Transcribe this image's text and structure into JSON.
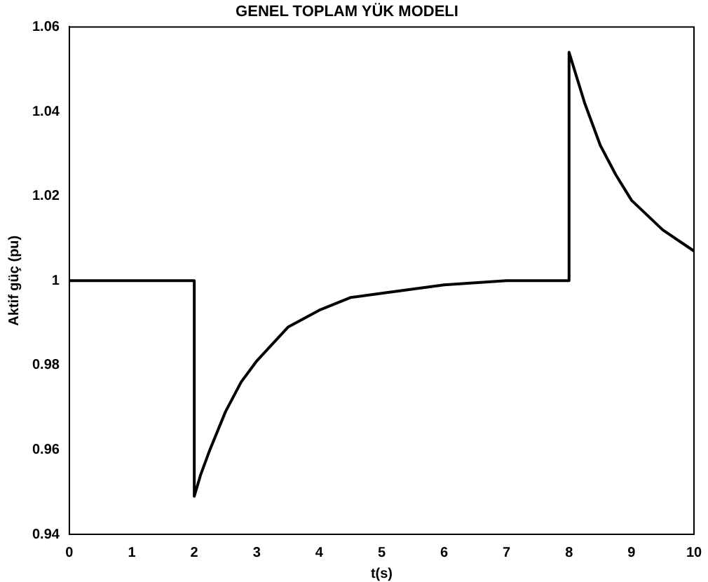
{
  "chart_data": {
    "type": "line",
    "title": "GENEL TOPLAM YÜK MODELI",
    "xlabel": "t(s)",
    "ylabel": "Aktif güç (pu)",
    "x": [
      0,
      2,
      2,
      2.1,
      2.25,
      2.5,
      2.75,
      3,
      3.5,
      4,
      4.5,
      5,
      6,
      7,
      8,
      8,
      8.25,
      8.5,
      8.75,
      9,
      9.5,
      10
    ],
    "series": [
      {
        "color": "#000000",
        "values": [
          1,
          1,
          0.949,
          0.954,
          0.96,
          0.969,
          0.976,
          0.981,
          0.989,
          0.993,
          0.996,
          0.997,
          0.999,
          1,
          1,
          1.054,
          1.042,
          1.032,
          1.025,
          1.019,
          1.012,
          1.007
        ]
      }
    ],
    "xlim": [
      0,
      10
    ],
    "xticks": [
      0,
      1,
      2,
      3,
      4,
      5,
      6,
      7,
      8,
      9,
      10
    ],
    "ylim": [
      0.94,
      1.06
    ],
    "yticks": [
      0.94,
      0.96,
      0.98,
      1,
      1.02,
      1.04,
      1.06
    ],
    "grid": false,
    "legend": false,
    "marker": "none",
    "line_style": "solid"
  }
}
